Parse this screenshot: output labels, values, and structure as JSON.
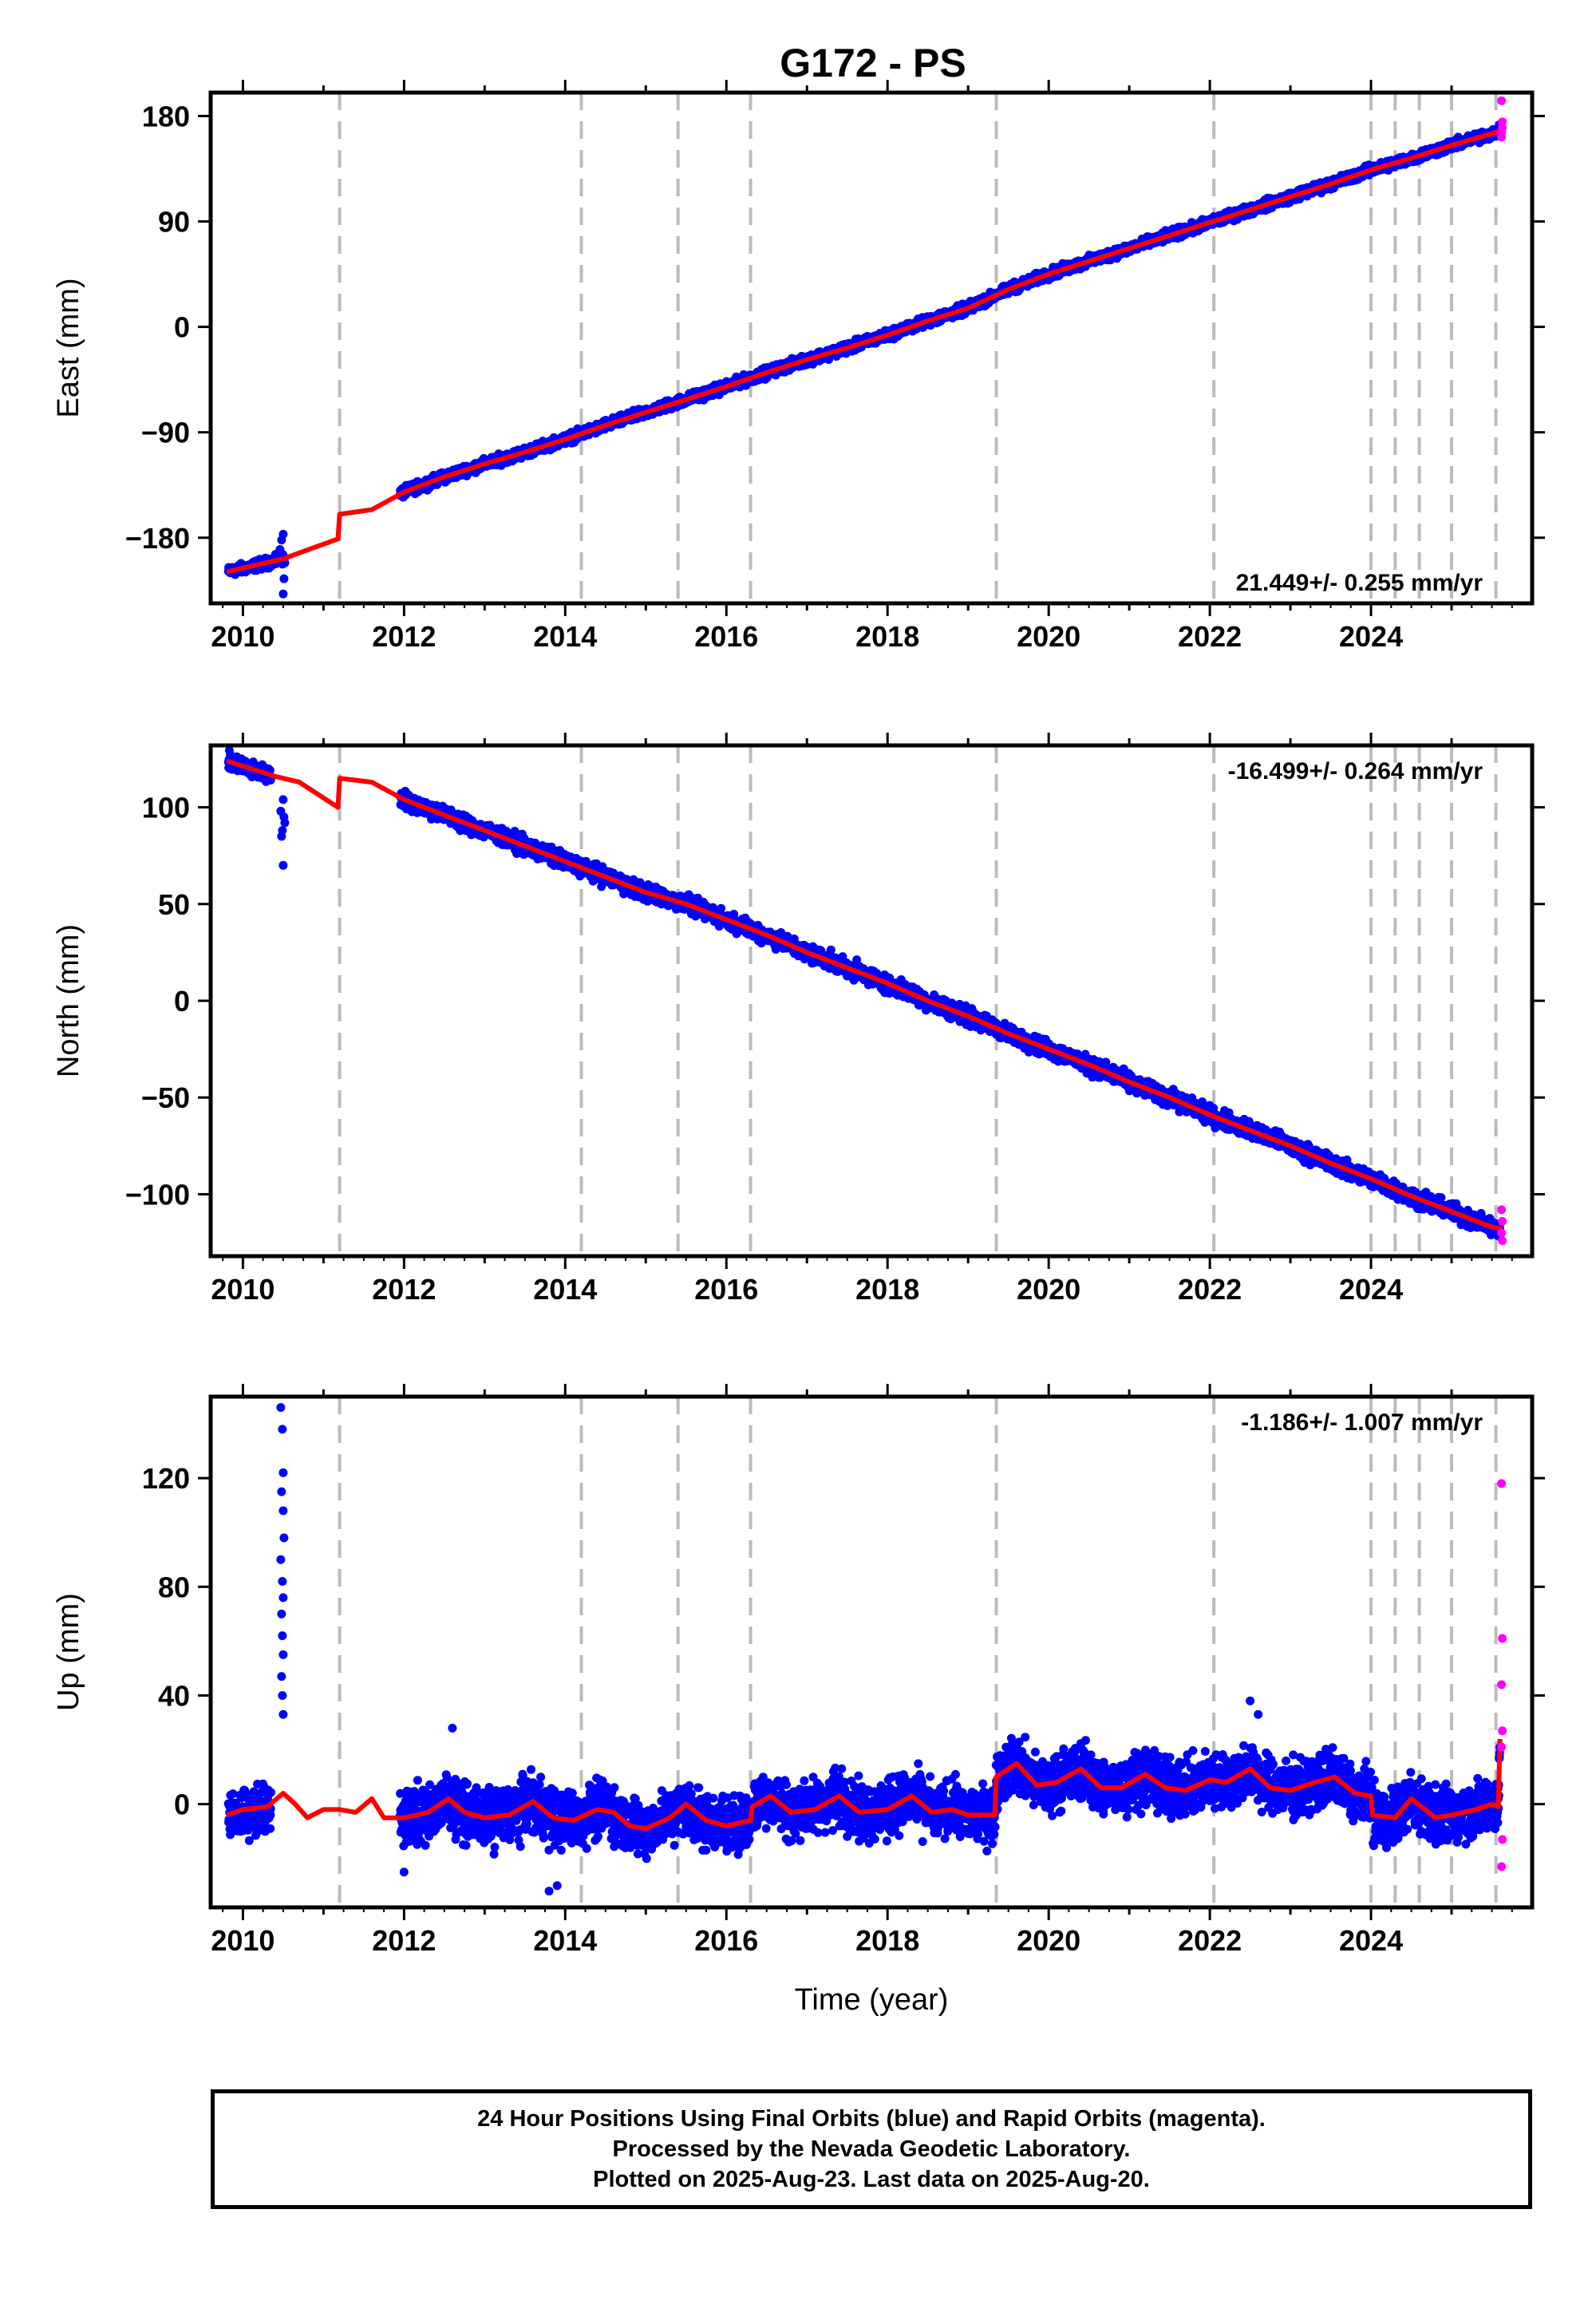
{
  "title": "G172 - PS",
  "xlabel": "Time (year)",
  "colors": {
    "final_orbits": "#0000ff",
    "rapid_orbits": "#ff00ff",
    "model": "#ff0000",
    "event_lines": "#bbbbbb"
  },
  "chart_data": [
    {
      "type": "scatter",
      "component": "east",
      "ylabel": "East (mm)",
      "rate_label": "21.449+/- 0.255 mm/yr",
      "xlim": [
        2009.6,
        2026.0
      ],
      "ylim": [
        -236,
        200
      ],
      "yticks": [
        -180,
        -90,
        0,
        90,
        180
      ],
      "xticks": [
        2010,
        2012,
        2014,
        2016,
        2018,
        2020,
        2022,
        2024
      ],
      "event_lines": [
        2011.2,
        2014.2,
        2015.4,
        2016.3,
        2019.35,
        2022.05,
        2024.0,
        2024.3,
        2024.6,
        2025.0,
        2025.55
      ],
      "model_line": [
        [
          2009.8,
          -209
        ],
        [
          2010.5,
          -198
        ],
        [
          2011.18,
          -181
        ],
        [
          2011.2,
          -160
        ],
        [
          2011.6,
          -156
        ],
        [
          2012.0,
          -141
        ],
        [
          2012.5,
          -128
        ],
        [
          2013.0,
          -117
        ],
        [
          2013.5,
          -107
        ],
        [
          2014.0,
          -96
        ],
        [
          2014.5,
          -84
        ],
        [
          2015.0,
          -73
        ],
        [
          2015.5,
          -62
        ],
        [
          2016.0,
          -51
        ],
        [
          2016.5,
          -39
        ],
        [
          2017.0,
          -28
        ],
        [
          2017.5,
          -18
        ],
        [
          2018.0,
          -7
        ],
        [
          2018.5,
          5
        ],
        [
          2019.0,
          16
        ],
        [
          2019.5,
          32
        ],
        [
          2020.0,
          45
        ],
        [
          2020.5,
          56
        ],
        [
          2021.0,
          67
        ],
        [
          2021.5,
          78
        ],
        [
          2022.0,
          89
        ],
        [
          2022.5,
          100
        ],
        [
          2023.0,
          111
        ],
        [
          2023.5,
          122
        ],
        [
          2024.0,
          134
        ],
        [
          2024.5,
          144
        ],
        [
          2025.0,
          155
        ],
        [
          2025.5,
          165
        ],
        [
          2025.63,
          168
        ]
      ],
      "series": [
        {
          "name": "Final Orbits",
          "segments": [
            {
              "x0": 2009.82,
              "x1": 2010.52,
              "y0": -209,
              "y1": -198,
              "noise": 3,
              "step": 0.004
            },
            {
              "x0": 2011.95,
              "x1": 2025.6,
              "noise": 3,
              "step": 0.004,
              "follow_model": true
            }
          ],
          "outliers": [
            [
              2010.5,
              -228
            ],
            [
              2010.5,
              -177
            ],
            [
              2010.48,
              -182
            ],
            [
              2010.46,
              -190
            ],
            [
              2010.51,
              -215
            ]
          ]
        },
        {
          "name": "Rapid Orbits",
          "points": [
            [
              2025.62,
              162
            ],
            [
              2025.62,
              166
            ],
            [
              2025.63,
              170
            ],
            [
              2025.63,
              175
            ],
            [
              2025.62,
              193
            ]
          ]
        }
      ]
    },
    {
      "type": "scatter",
      "component": "north",
      "ylabel": "North (mm)",
      "rate_label": "-16.499+/- 0.264 mm/yr",
      "xlim": [
        2009.6,
        2026.0
      ],
      "ylim": [
        -132,
        132
      ],
      "yticks": [
        -100,
        -50,
        0,
        50,
        100
      ],
      "xticks": [
        2010,
        2012,
        2014,
        2016,
        2018,
        2020,
        2022,
        2024
      ],
      "event_lines": [
        2011.2,
        2014.2,
        2015.4,
        2016.3,
        2019.35,
        2022.05,
        2024.0,
        2024.3,
        2024.6,
        2025.0,
        2025.55
      ],
      "model_line": [
        [
          2009.8,
          124
        ],
        [
          2010.4,
          116
        ],
        [
          2010.7,
          113
        ],
        [
          2011.18,
          100
        ],
        [
          2011.2,
          115
        ],
        [
          2011.6,
          113
        ],
        [
          2012.0,
          104
        ],
        [
          2012.5,
          96
        ],
        [
          2013.0,
          88
        ],
        [
          2013.5,
          80
        ],
        [
          2014.0,
          72
        ],
        [
          2014.5,
          64
        ],
        [
          2015.0,
          56
        ],
        [
          2015.5,
          50
        ],
        [
          2016.0,
          42
        ],
        [
          2016.5,
          34
        ],
        [
          2017.0,
          25
        ],
        [
          2017.5,
          17
        ],
        [
          2018.0,
          9
        ],
        [
          2018.5,
          0
        ],
        [
          2019.0,
          -8
        ],
        [
          2019.5,
          -17
        ],
        [
          2020.0,
          -25
        ],
        [
          2020.5,
          -33
        ],
        [
          2021.0,
          -42
        ],
        [
          2021.5,
          -50
        ],
        [
          2022.0,
          -59
        ],
        [
          2022.5,
          -67
        ],
        [
          2023.0,
          -75
        ],
        [
          2023.5,
          -84
        ],
        [
          2024.0,
          -92
        ],
        [
          2024.5,
          -101
        ],
        [
          2025.0,
          -109
        ],
        [
          2025.5,
          -117
        ],
        [
          2025.63,
          -118
        ]
      ],
      "series": [
        {
          "name": "Final Orbits",
          "segments": [
            {
              "x0": 2009.82,
              "x1": 2010.35,
              "y0": 124,
              "y1": 116,
              "noise": 3,
              "step": 0.004
            },
            {
              "x0": 2011.95,
              "x1": 2025.6,
              "noise": 3,
              "step": 0.004,
              "follow_model": true
            }
          ],
          "outliers": [
            [
              2010.5,
              70
            ],
            [
              2010.48,
              85
            ],
            [
              2010.52,
              92
            ],
            [
              2010.47,
              98
            ],
            [
              2010.5,
              104
            ],
            [
              2010.49,
              88
            ],
            [
              2010.51,
              95
            ]
          ]
        },
        {
          "name": "Rapid Orbits",
          "points": [
            [
              2025.62,
              -108
            ],
            [
              2025.63,
              -114
            ],
            [
              2025.62,
              -120
            ],
            [
              2025.63,
              -124
            ]
          ]
        }
      ]
    },
    {
      "type": "scatter",
      "component": "up",
      "ylabel": "Up (mm)",
      "rate_label": "-1.186+/- 1.007 mm/yr",
      "xlim": [
        2009.6,
        2026.0
      ],
      "ylim": [
        -38,
        150
      ],
      "yticks": [
        0,
        40,
        80,
        120
      ],
      "xticks": [
        2010,
        2012,
        2014,
        2016,
        2018,
        2020,
        2022,
        2024
      ],
      "event_lines": [
        2011.2,
        2014.2,
        2015.4,
        2016.3,
        2019.35,
        2022.05,
        2024.0,
        2024.3,
        2024.6,
        2025.0,
        2025.55
      ],
      "model_line": [
        [
          2009.8,
          -4
        ],
        [
          2010.0,
          -2
        ],
        [
          2010.3,
          -1
        ],
        [
          2010.5,
          4
        ],
        [
          2010.65,
          0
        ],
        [
          2010.8,
          -5
        ],
        [
          2011.0,
          -2
        ],
        [
          2011.2,
          -2
        ],
        [
          2011.4,
          -3
        ],
        [
          2011.6,
          2
        ],
        [
          2011.75,
          -5
        ],
        [
          2012.0,
          -5
        ],
        [
          2012.3,
          -3
        ],
        [
          2012.55,
          2
        ],
        [
          2012.75,
          -3
        ],
        [
          2013.0,
          -5
        ],
        [
          2013.3,
          -4
        ],
        [
          2013.6,
          1
        ],
        [
          2013.85,
          -5
        ],
        [
          2014.1,
          -6
        ],
        [
          2014.4,
          -2
        ],
        [
          2014.6,
          -3
        ],
        [
          2014.8,
          -8
        ],
        [
          2015.0,
          -9
        ],
        [
          2015.3,
          -5
        ],
        [
          2015.5,
          0
        ],
        [
          2015.75,
          -6
        ],
        [
          2016.0,
          -8
        ],
        [
          2016.3,
          -6
        ],
        [
          2016.32,
          -1
        ],
        [
          2016.55,
          3
        ],
        [
          2016.8,
          -3
        ],
        [
          2017.1,
          -2
        ],
        [
          2017.4,
          3
        ],
        [
          2017.65,
          -3
        ],
        [
          2018.0,
          -2
        ],
        [
          2018.3,
          3
        ],
        [
          2018.55,
          -3
        ],
        [
          2018.8,
          -2
        ],
        [
          2019.0,
          -4
        ],
        [
          2019.33,
          -4
        ],
        [
          2019.35,
          10
        ],
        [
          2019.6,
          15
        ],
        [
          2019.85,
          7
        ],
        [
          2020.1,
          8
        ],
        [
          2020.4,
          13
        ],
        [
          2020.65,
          6
        ],
        [
          2020.9,
          6
        ],
        [
          2021.2,
          11
        ],
        [
          2021.45,
          6
        ],
        [
          2021.7,
          5
        ],
        [
          2022.0,
          9
        ],
        [
          2022.2,
          8
        ],
        [
          2022.5,
          13
        ],
        [
          2022.75,
          6
        ],
        [
          2023.0,
          5
        ],
        [
          2023.3,
          8
        ],
        [
          2023.55,
          10
        ],
        [
          2023.8,
          4
        ],
        [
          2024.0,
          3
        ],
        [
          2024.02,
          -4
        ],
        [
          2024.3,
          -5
        ],
        [
          2024.5,
          2
        ],
        [
          2024.8,
          -5
        ],
        [
          2025.0,
          -4
        ],
        [
          2025.3,
          -2
        ],
        [
          2025.5,
          0
        ],
        [
          2025.58,
          -1
        ],
        [
          2025.6,
          24
        ]
      ],
      "series": [
        {
          "name": "Final Orbits",
          "segments": [
            {
              "x0": 2009.82,
              "x1": 2010.35,
              "y0": -4,
              "y1": -1,
              "noise": 6,
              "step": 0.003
            },
            {
              "x0": 2011.95,
              "x1": 2025.6,
              "noise": 7,
              "step": 0.003,
              "follow_model": true
            }
          ],
          "outliers": [
            [
              2010.47,
              146
            ],
            [
              2010.49,
              138
            ],
            [
              2010.5,
              122
            ],
            [
              2010.48,
              115
            ],
            [
              2010.5,
              108
            ],
            [
              2010.51,
              98
            ],
            [
              2010.47,
              90
            ],
            [
              2010.49,
              82
            ],
            [
              2010.5,
              76
            ],
            [
              2010.48,
              70
            ],
            [
              2010.49,
              62
            ],
            [
              2010.5,
              55
            ],
            [
              2010.48,
              47
            ],
            [
              2010.49,
              40
            ],
            [
              2010.5,
              33
            ],
            [
              2013.8,
              -32
            ],
            [
              2013.9,
              -30
            ],
            [
              2012.0,
              -25
            ],
            [
              2022.5,
              38
            ],
            [
              2022.6,
              33
            ],
            [
              2012.6,
              28
            ]
          ]
        },
        {
          "name": "Rapid Orbits",
          "points": [
            [
              2025.62,
              118
            ],
            [
              2025.63,
              61
            ],
            [
              2025.62,
              44
            ],
            [
              2025.63,
              27
            ],
            [
              2025.62,
              21
            ],
            [
              2025.63,
              -13
            ],
            [
              2025.62,
              -23
            ]
          ]
        }
      ]
    }
  ],
  "footer": {
    "line1": "24 Hour Positions Using Final Orbits (blue) and Rapid Orbits (magenta).",
    "line2": "Processed by the Nevada Geodetic Laboratory.",
    "line3": "Plotted on 2025-Aug-23. Last data on 2025-Aug-20."
  }
}
